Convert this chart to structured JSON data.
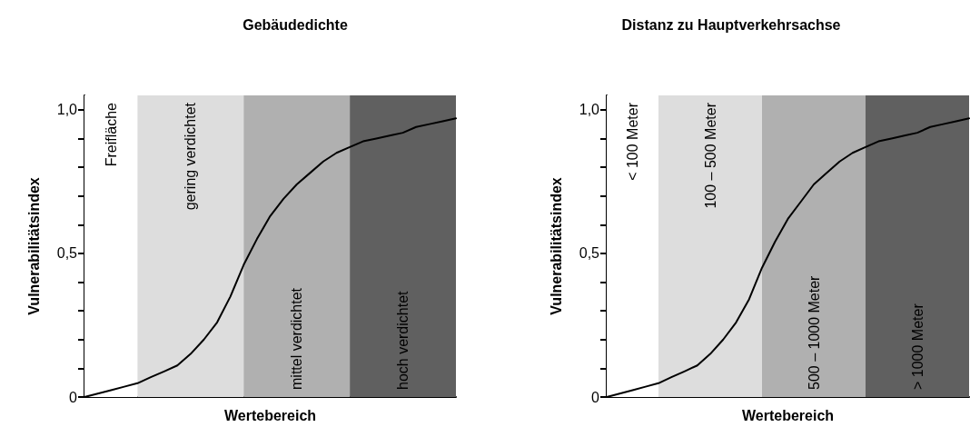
{
  "chart_data": [
    {
      "type": "line",
      "title": "Gebäudedichte",
      "xlabel": "Wertebereich",
      "ylabel": "Vulnerabilitätsindex",
      "categories": [
        null,
        null,
        null,
        null,
        null,
        null,
        null,
        null,
        null,
        null,
        null,
        null,
        null,
        null,
        null,
        null,
        null,
        null,
        null,
        null,
        null,
        null,
        null,
        null,
        null,
        null,
        null,
        null,
        null
      ],
      "ylim": [
        0,
        1.05
      ],
      "yticks": [
        {
          "value": 0,
          "label": "0"
        },
        {
          "value": 0.1,
          "label": null
        },
        {
          "value": 0.2,
          "label": null
        },
        {
          "value": 0.3,
          "label": null
        },
        {
          "value": 0.4,
          "label": null
        },
        {
          "value": 0.5,
          "label": "0,5"
        },
        {
          "value": 0.6,
          "label": null
        },
        {
          "value": 0.7,
          "label": null
        },
        {
          "value": 0.8,
          "label": null
        },
        {
          "value": 0.9,
          "label": null
        },
        {
          "value": 1,
          "label": "1,0"
        }
      ],
      "tick_labels": "y",
      "grid": false,
      "annotations": [
        "Freifläche",
        "gering verdichtet",
        "mittel verdichtet",
        "hoch verdichtet"
      ],
      "series": [
        {
          "color": "#000000",
          "values": [
            0,
            0.012,
            0.024,
            0.036,
            0.048,
            0.069,
            0.089,
            0.11,
            0.15,
            0.2,
            0.26,
            0.35,
            0.46,
            0.55,
            0.63,
            0.69,
            0.74,
            0.78,
            0.82,
            0.85,
            0.87,
            0.89,
            0.9,
            0.91,
            0.92,
            0.94,
            0.95,
            0.96,
            0.97
          ]
        }
      ]
    },
    {
      "type": "line",
      "title": "Distanz zu Hauptverkehrsachse",
      "xlabel": "Wertebereich",
      "ylabel": "Vulnerabilitätsindex",
      "categories": [
        null,
        null,
        null,
        null,
        null,
        null,
        null,
        null,
        null,
        null,
        null,
        null,
        null,
        null,
        null,
        null,
        null,
        null,
        null,
        null,
        null,
        null,
        null,
        null,
        null,
        null,
        null,
        null,
        null
      ],
      "ylim": [
        0,
        1.05
      ],
      "yticks": [
        {
          "value": 0,
          "label": "0"
        },
        {
          "value": 0.1,
          "label": null
        },
        {
          "value": 0.2,
          "label": null
        },
        {
          "value": 0.3,
          "label": null
        },
        {
          "value": 0.4,
          "label": null
        },
        {
          "value": 0.5,
          "label": "0,5"
        },
        {
          "value": 0.6,
          "label": null
        },
        {
          "value": 0.7,
          "label": null
        },
        {
          "value": 0.8,
          "label": null
        },
        {
          "value": 0.9,
          "label": null
        },
        {
          "value": 1,
          "label": "1,0"
        }
      ],
      "tick_labels": "y",
      "grid": false,
      "annotations": [
        "< 100 Meter",
        "100 – 500 Meter",
        "500 – 1000 Meter",
        "> 1000 Meter"
      ],
      "series": [
        {
          "color": "#000000",
          "values": [
            0,
            0.012,
            0.024,
            0.036,
            0.048,
            0.069,
            0.089,
            0.11,
            0.15,
            0.2,
            0.26,
            0.34,
            0.45,
            0.54,
            0.62,
            0.68,
            0.74,
            0.78,
            0.82,
            0.85,
            0.87,
            0.89,
            0.9,
            0.91,
            0.92,
            0.94,
            0.95,
            0.96,
            0.97
          ]
        }
      ]
    }
  ]
}
